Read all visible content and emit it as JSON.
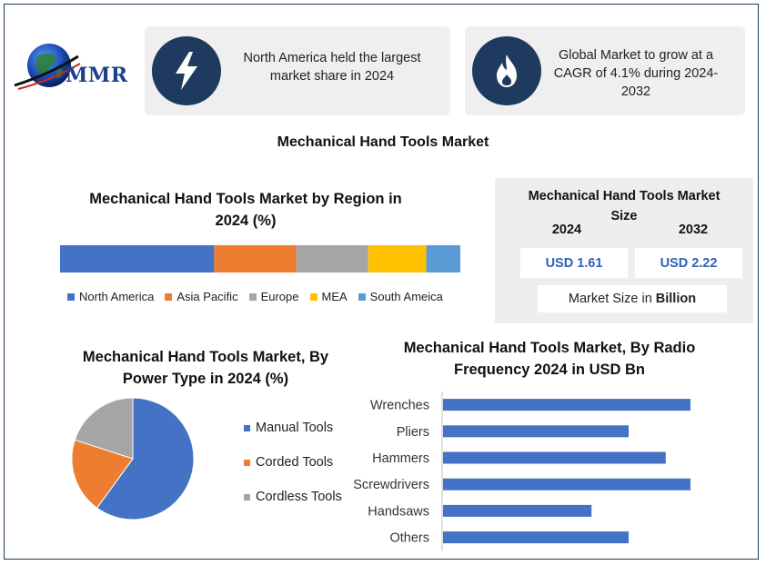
{
  "logo": {
    "text": "MMR"
  },
  "callouts": [
    {
      "icon": "lightning-icon",
      "text_lines": [
        "North America held the largest",
        "market share in 2024"
      ]
    },
    {
      "icon": "flame-icon",
      "text_lines": [
        "Global Market to grow at a",
        "CAGR of 4.1% during 2024-",
        "2032"
      ]
    }
  ],
  "main_title": "Mechanical Hand Tools Market",
  "colors": {
    "blue": "#4472c4",
    "orange": "#ed7d31",
    "gray": "#a5a5a5",
    "yellow": "#ffc000",
    "lightblue": "#5b9bd5",
    "navy": "#1f3a5f",
    "value_text": "#2e62b8"
  },
  "market_size": {
    "title_lines": [
      "Mechanical Hand Tools Market",
      "Size"
    ],
    "years": [
      "2024",
      "2032"
    ],
    "values": [
      "USD 1.61",
      "USD 2.22"
    ],
    "unit_prefix": "Market Size in",
    "unit_bold": "Billion"
  },
  "chart_data": [
    {
      "type": "bar",
      "orientation": "stacked-horizontal",
      "title_lines": [
        "Mechanical Hand Tools Market by Region in",
        "2024 (%)"
      ],
      "categories": [
        "North America",
        "Asia Pacific",
        "Europe",
        "MEA",
        "South Ameica"
      ],
      "values": [
        38.5,
        20.5,
        18,
        14.5,
        8.5
      ],
      "legend": "bottom"
    },
    {
      "type": "pie",
      "title_lines": [
        "Mechanical Hand Tools Market, By",
        "Power Type in 2024 (%)"
      ],
      "labels": [
        "Manual Tools",
        "Corded Tools",
        "Cordless Tools"
      ],
      "values": [
        60,
        20,
        20
      ],
      "legend": "right"
    },
    {
      "type": "bar",
      "orientation": "horizontal",
      "title_lines": [
        "Mechanical Hand Tools Market, By Radio",
        "Frequency 2024 in USD Bn"
      ],
      "categories": [
        "Wrenches",
        "Pliers",
        "Hammers",
        "Screwdrivers",
        "Handsaws",
        "Others"
      ],
      "values": [
        0.4,
        0.3,
        0.36,
        0.4,
        0.24,
        0.3
      ],
      "xlim": [
        0,
        0.5
      ]
    }
  ]
}
